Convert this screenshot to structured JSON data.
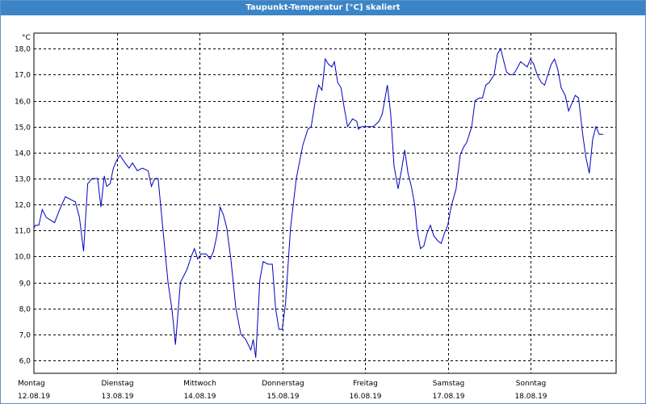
{
  "window": {
    "title": "Taupunkt-Temperatur [°C] skaliert"
  },
  "chart_data": {
    "type": "line",
    "title": "Taupunkt-Temperatur [°C] skaliert",
    "ylabel": "°C",
    "xlabel": "",
    "ylim": [
      5.5,
      18.6
    ],
    "y_ticks": [
      "6,0",
      "7,0",
      "8,0",
      "9,0",
      "10,0",
      "11,0",
      "12,0",
      "13,0",
      "14,0",
      "15,0",
      "16,0",
      "17,0",
      "18,0"
    ],
    "y_tick_values": [
      6,
      7,
      8,
      9,
      10,
      11,
      12,
      13,
      14,
      15,
      16,
      17,
      18
    ],
    "x_days": [
      {
        "day": "Montag",
        "date": "12.08.19"
      },
      {
        "day": "Dienstag",
        "date": "13.08.19"
      },
      {
        "day": "Mittwoch",
        "date": "14.08.19"
      },
      {
        "day": "Donnerstag",
        "date": "15.08.19"
      },
      {
        "day": "Freitag",
        "date": "16.08.19"
      },
      {
        "day": "Samstag",
        "date": "17.08.19"
      },
      {
        "day": "Sonntag",
        "date": "18.08.19"
      }
    ],
    "grid": true,
    "line_color": "#0000c0",
    "series": [
      {
        "values": [
          [
            0.0,
            11.1
          ],
          [
            0.02,
            11.2
          ],
          [
            0.06,
            11.2
          ],
          [
            0.1,
            11.8
          ],
          [
            0.15,
            11.5
          ],
          [
            0.25,
            11.3
          ],
          [
            0.31,
            11.8
          ],
          [
            0.38,
            12.3
          ],
          [
            0.44,
            12.2
          ],
          [
            0.5,
            12.1
          ],
          [
            0.55,
            11.5
          ],
          [
            0.6,
            10.2
          ],
          [
            0.65,
            12.8
          ],
          [
            0.7,
            13.0
          ],
          [
            0.77,
            13.0
          ],
          [
            0.81,
            11.9
          ],
          [
            0.85,
            13.1
          ],
          [
            0.88,
            12.7
          ],
          [
            0.92,
            12.8
          ],
          [
            0.96,
            13.4
          ],
          [
            1.0,
            13.7
          ],
          [
            1.04,
            13.9
          ],
          [
            1.1,
            13.6
          ],
          [
            1.15,
            13.4
          ],
          [
            1.19,
            13.6
          ],
          [
            1.25,
            13.3
          ],
          [
            1.31,
            13.4
          ],
          [
            1.38,
            13.3
          ],
          [
            1.42,
            12.7
          ],
          [
            1.46,
            13.0
          ],
          [
            1.5,
            13.0
          ],
          [
            1.56,
            11.0
          ],
          [
            1.62,
            9.0
          ],
          [
            1.67,
            7.9
          ],
          [
            1.71,
            6.6
          ],
          [
            1.77,
            9.0
          ],
          [
            1.85,
            9.5
          ],
          [
            1.9,
            10.0
          ],
          [
            1.94,
            10.3
          ],
          [
            1.98,
            9.9
          ],
          [
            2.02,
            10.1
          ],
          [
            2.08,
            10.1
          ],
          [
            2.13,
            9.9
          ],
          [
            2.17,
            10.2
          ],
          [
            2.21,
            10.8
          ],
          [
            2.25,
            11.9
          ],
          [
            2.29,
            11.6
          ],
          [
            2.33,
            11.1
          ],
          [
            2.38,
            9.9
          ],
          [
            2.44,
            8.0
          ],
          [
            2.5,
            7.0
          ],
          [
            2.56,
            6.8
          ],
          [
            2.62,
            6.4
          ],
          [
            2.65,
            6.8
          ],
          [
            2.68,
            6.1
          ],
          [
            2.73,
            9.1
          ],
          [
            2.77,
            9.8
          ],
          [
            2.83,
            9.7
          ],
          [
            2.88,
            9.7
          ],
          [
            2.92,
            8.0
          ],
          [
            2.96,
            7.2
          ],
          [
            3.0,
            7.2
          ],
          [
            3.04,
            8.2
          ],
          [
            3.1,
            11.1
          ],
          [
            3.17,
            13.0
          ],
          [
            3.25,
            14.3
          ],
          [
            3.31,
            14.9
          ],
          [
            3.35,
            15.0
          ],
          [
            3.4,
            16.0
          ],
          [
            3.44,
            16.6
          ],
          [
            3.48,
            16.4
          ],
          [
            3.52,
            17.6
          ],
          [
            3.56,
            17.4
          ],
          [
            3.6,
            17.3
          ],
          [
            3.63,
            17.5
          ],
          [
            3.67,
            16.7
          ],
          [
            3.71,
            16.5
          ],
          [
            3.75,
            15.7
          ],
          [
            3.79,
            15.0
          ],
          [
            3.85,
            15.3
          ],
          [
            3.9,
            15.2
          ],
          [
            3.92,
            14.9
          ],
          [
            3.96,
            15.0
          ],
          [
            4.04,
            15.0
          ],
          [
            4.1,
            15.0
          ],
          [
            4.17,
            15.2
          ],
          [
            4.21,
            15.5
          ],
          [
            4.27,
            16.6
          ],
          [
            4.31,
            15.5
          ],
          [
            4.35,
            13.5
          ],
          [
            4.4,
            12.6
          ],
          [
            4.44,
            13.3
          ],
          [
            4.48,
            14.1
          ],
          [
            4.52,
            13.2
          ],
          [
            4.56,
            12.7
          ],
          [
            4.6,
            12.0
          ],
          [
            4.63,
            11.0
          ],
          [
            4.67,
            10.3
          ],
          [
            4.71,
            10.4
          ],
          [
            4.75,
            10.9
          ],
          [
            4.79,
            11.2
          ],
          [
            4.83,
            10.8
          ],
          [
            4.88,
            10.6
          ],
          [
            4.92,
            10.5
          ],
          [
            4.96,
            10.9
          ],
          [
            5.0,
            11.2
          ],
          [
            5.04,
            11.9
          ],
          [
            5.1,
            12.6
          ],
          [
            5.15,
            13.9
          ],
          [
            5.19,
            14.2
          ],
          [
            5.23,
            14.4
          ],
          [
            5.29,
            15.0
          ],
          [
            5.33,
            16.0
          ],
          [
            5.38,
            16.1
          ],
          [
            5.42,
            16.1
          ],
          [
            5.46,
            16.6
          ],
          [
            5.5,
            16.7
          ],
          [
            5.56,
            17.0
          ],
          [
            5.6,
            17.8
          ],
          [
            5.64,
            18.0
          ],
          [
            5.67,
            17.6
          ],
          [
            5.71,
            17.1
          ],
          [
            5.75,
            17.0
          ],
          [
            5.79,
            17.0
          ],
          [
            5.83,
            17.2
          ],
          [
            5.88,
            17.5
          ],
          [
            5.92,
            17.4
          ],
          [
            5.96,
            17.3
          ],
          [
            6.0,
            17.6
          ],
          [
            6.04,
            17.4
          ],
          [
            6.08,
            17.0
          ],
          [
            6.13,
            16.7
          ],
          [
            6.17,
            16.6
          ],
          [
            6.21,
            17.0
          ],
          [
            6.25,
            17.4
          ],
          [
            6.29,
            17.6
          ],
          [
            6.33,
            17.2
          ],
          [
            6.37,
            16.5
          ],
          [
            6.42,
            16.2
          ],
          [
            6.46,
            15.6
          ],
          [
            6.5,
            15.9
          ],
          [
            6.54,
            16.2
          ],
          [
            6.58,
            16.1
          ],
          [
            6.63,
            14.7
          ],
          [
            6.67,
            13.8
          ],
          [
            6.71,
            13.2
          ],
          [
            6.75,
            14.5
          ],
          [
            6.79,
            15.0
          ],
          [
            6.83,
            14.7
          ],
          [
            6.88,
            14.7
          ]
        ]
      }
    ]
  }
}
